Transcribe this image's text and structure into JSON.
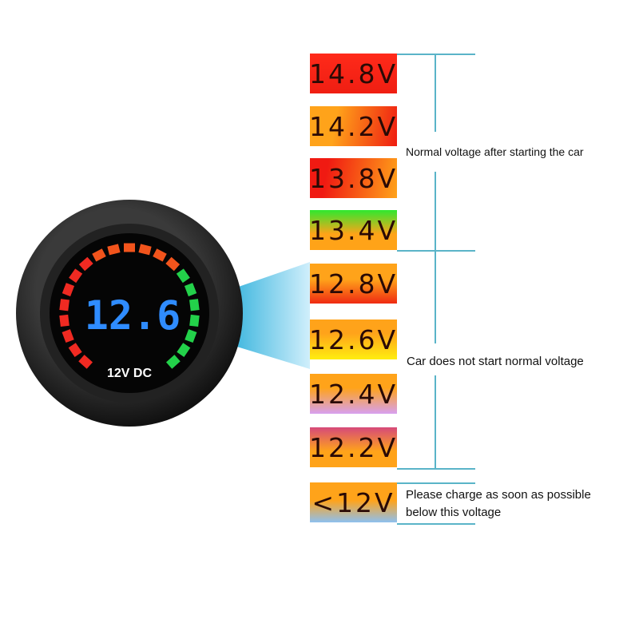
{
  "gauge": {
    "reading": "12.6",
    "label": "12V DC",
    "digit_color": "#2f8cff",
    "segments": {
      "red": 8,
      "orange": 6,
      "green": 7
    },
    "segment_colors": {
      "red": "#f02a22",
      "orange": "#f2541c",
      "green": "#23d14a"
    }
  },
  "levels": [
    {
      "label": "14.8V",
      "bg": "linear-gradient(#ff2a1a,#ef1e12)"
    },
    {
      "label": "14.2V",
      "bg": "linear-gradient(100deg,#ffa31a 30%,#ef1c12)"
    },
    {
      "label": "13.8V",
      "bg": "linear-gradient(100deg,#f01a12 20%,#ffa31a)"
    },
    {
      "label": "13.4V",
      "bg": "linear-gradient(#2fe82f,#ffa318 60%)"
    },
    {
      "label": "12.8V",
      "bg": "linear-gradient(#ffa31a 40%,#ef2a12)"
    },
    {
      "label": "12.6V",
      "bg": "linear-gradient(#ffa31a 35%,#ffee10)"
    },
    {
      "label": "12.4V",
      "bg": "linear-gradient(#ffa31a 35%,#d7a0f0)"
    },
    {
      "label": "12.2V",
      "bg": "linear-gradient(#d64a7a,#ffa31a 60%)"
    },
    {
      "label": "<12V",
      "bg": "linear-gradient(#ffa31a 45%,#8ec0f0)"
    }
  ],
  "notes": {
    "normal_running": "Normal voltage after starting the car",
    "not_started": "Car does not start normal voltage",
    "charge_line1": "Please charge as soon as possible",
    "charge_line2": "below this voltage"
  },
  "line_color": "#5ab4c8"
}
